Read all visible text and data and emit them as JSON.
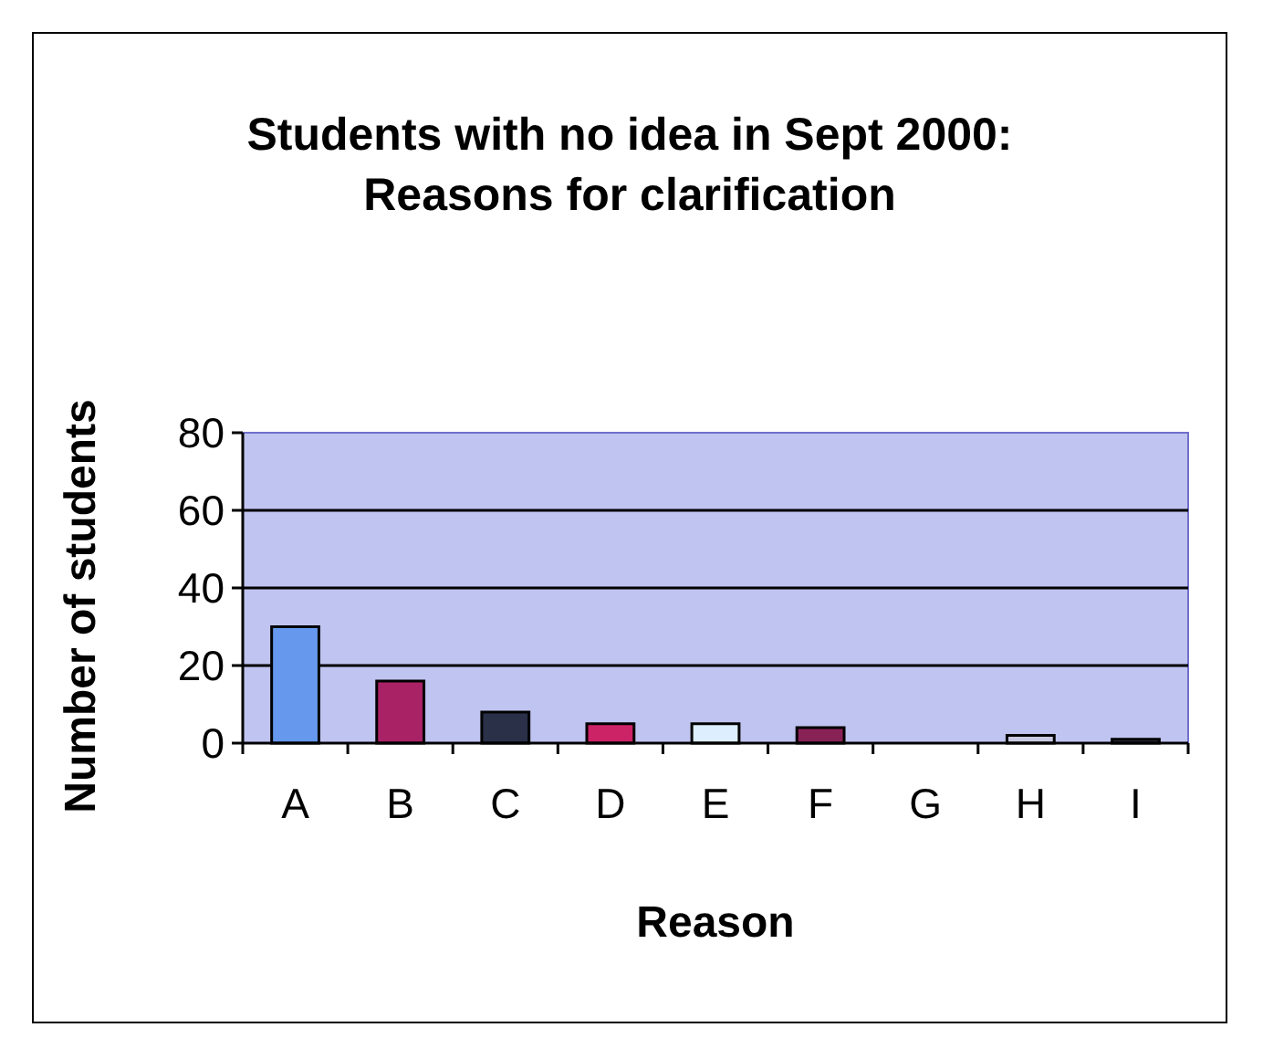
{
  "chart_data": {
    "type": "bar",
    "title": "Students with no idea in Sept 2000:\nReasons for clarification",
    "xlabel": "Reason",
    "ylabel": "Number of students",
    "categories": [
      "A",
      "B",
      "C",
      "D",
      "E",
      "F",
      "G",
      "H",
      "I"
    ],
    "values": [
      30,
      16,
      8,
      5,
      5,
      4,
      0,
      2,
      1
    ],
    "colors": [
      "#6699ee",
      "#aa2266",
      "#2a3048",
      "#cc2266",
      "#ddeeff",
      "#882255",
      "#8888cc",
      "#c8c8e0",
      "#333344"
    ],
    "ylim": [
      0,
      80
    ],
    "yticks": [
      0,
      20,
      40,
      60,
      80
    ],
    "grid": "y"
  }
}
